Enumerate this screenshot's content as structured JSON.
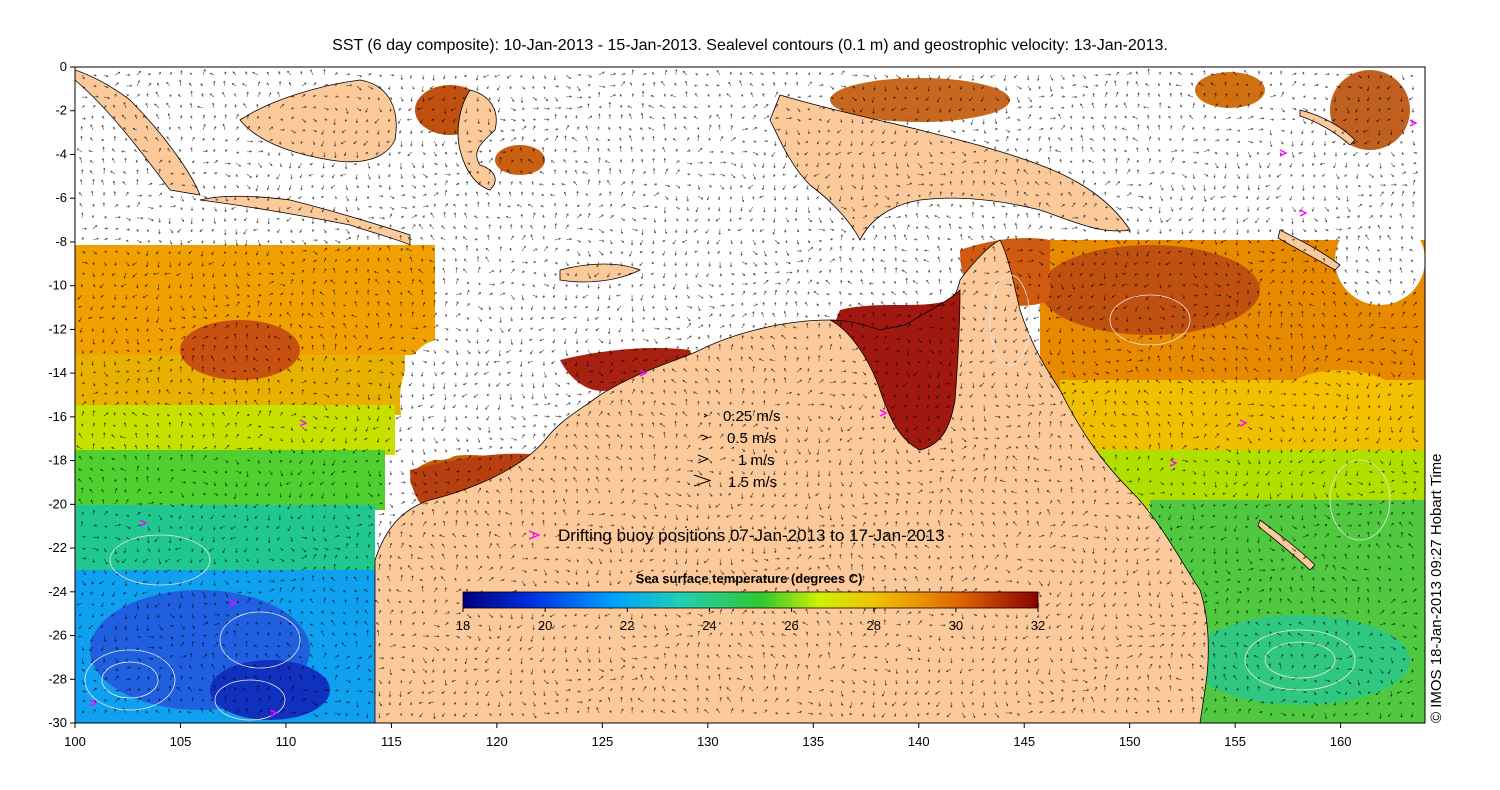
{
  "title": "SST (6 day composite): 10-Jan-2013 - 15-Jan-2013. Sealevel contours (0.1 m) and geostrophic velocity: 13-Jan-2013.",
  "map": {
    "lon_range": [
      100,
      164
    ],
    "lat_range": [
      -30,
      0
    ],
    "x_ticks": [
      "100",
      "105",
      "110",
      "115",
      "120",
      "125",
      "130",
      "135",
      "140",
      "145",
      "150",
      "155",
      "160"
    ],
    "y_ticks": [
      "0",
      "-2",
      "-4",
      "-6",
      "-8",
      "-10",
      "-12",
      "-14",
      "-16",
      "-18",
      "-20",
      "-22",
      "-24",
      "-26",
      "-28",
      "-30"
    ],
    "land_color": "#fcc99b",
    "cloud_color": "#ffffff"
  },
  "velocity_legend": [
    {
      "label": "0.25 m/s",
      "symbol": "›"
    },
    {
      "label": "0.5 m/s",
      "symbol": "›"
    },
    {
      "label": "1 m/s",
      "symbol": ">"
    },
    {
      "label": "1.5 m/s",
      "symbol": ">"
    }
  ],
  "buoy_legend": {
    "symbol": ">",
    "label": "Drifting buoy positions 07-Jan-2013 to 17-Jan-2013",
    "color": "#ff00ff"
  },
  "colorbar": {
    "title": "Sea surface temperature (degrees C)",
    "range": [
      18,
      32
    ],
    "ticks": [
      "18",
      "20",
      "22",
      "24",
      "26",
      "28",
      "30",
      "32"
    ],
    "colors": [
      "#00007f",
      "#0040ff",
      "#00b0ff",
      "#20d0a0",
      "#30d030",
      "#d0f000",
      "#f0b000",
      "#e07000",
      "#8b0000"
    ]
  },
  "credit": "© IMOS 18-Jan-2013 09:27 Hobart Time"
}
